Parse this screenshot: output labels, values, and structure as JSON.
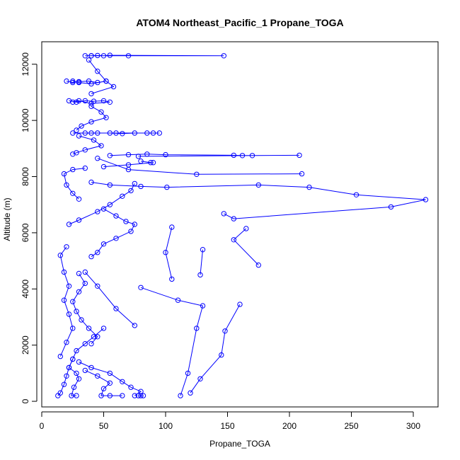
{
  "chart_data": {
    "type": "scatter",
    "title": "ATOM4 Northeast_Pacific_1 Propane_TOGA",
    "xlabel": "Propane_TOGA",
    "ylabel": "Altitude (m)",
    "xlim": [
      0,
      320
    ],
    "ylim": [
      -200,
      12800
    ],
    "x_ticks": [
      0,
      50,
      100,
      150,
      200,
      250,
      300
    ],
    "y_ticks": [
      0,
      2000,
      4000,
      6000,
      8000,
      10000,
      12000
    ],
    "grid": false,
    "legend": "none",
    "series_color": "#0000ff",
    "marker": "open-circle",
    "profiles": [
      [
        [
          35,
          12300
        ],
        [
          40,
          12300
        ],
        [
          45,
          12310
        ],
        [
          50,
          12300
        ],
        [
          55,
          12320
        ],
        [
          147,
          12300
        ],
        [
          70,
          12300
        ],
        [
          40,
          12300
        ]
      ],
      [
        [
          38,
          12150
        ],
        [
          45,
          11750
        ],
        [
          52,
          11400
        ],
        [
          58,
          11200
        ],
        [
          40,
          10950
        ]
      ],
      [
        [
          20,
          11400
        ],
        [
          25,
          11350
        ],
        [
          30,
          11380
        ],
        [
          38,
          11400
        ],
        [
          45,
          11350
        ],
        [
          52,
          11400
        ],
        [
          40,
          11300
        ],
        [
          30,
          11350
        ],
        [
          25,
          11400
        ]
      ],
      [
        [
          22,
          10700
        ],
        [
          28,
          10650
        ],
        [
          35,
          10700
        ],
        [
          42,
          10680
        ],
        [
          50,
          10700
        ],
        [
          55,
          10650
        ],
        [
          40,
          10600
        ],
        [
          30,
          10700
        ],
        [
          25,
          10650
        ]
      ],
      [
        [
          40,
          10500
        ],
        [
          48,
          10300
        ],
        [
          52,
          10100
        ],
        [
          40,
          9950
        ],
        [
          32,
          9800
        ],
        [
          28,
          9650
        ]
      ],
      [
        [
          25,
          9550
        ],
        [
          35,
          9550
        ],
        [
          45,
          9550
        ],
        [
          55,
          9550
        ],
        [
          65,
          9530
        ],
        [
          75,
          9550
        ],
        [
          85,
          9550
        ],
        [
          95,
          9550
        ],
        [
          90,
          9550
        ],
        [
          60,
          9550
        ],
        [
          40,
          9550
        ]
      ],
      [
        [
          30,
          9450
        ],
        [
          42,
          9300
        ],
        [
          48,
          9100
        ],
        [
          35,
          8950
        ],
        [
          28,
          8850
        ],
        [
          25,
          8800
        ]
      ],
      [
        [
          55,
          8750
        ],
        [
          70,
          8780
        ],
        [
          85,
          8800
        ],
        [
          100,
          8780
        ],
        [
          155,
          8760
        ],
        [
          162,
          8750
        ],
        [
          170,
          8750
        ],
        [
          208,
          8760
        ],
        [
          78,
          8720
        ]
      ],
      [
        [
          80,
          8550
        ],
        [
          88,
          8500
        ],
        [
          90,
          8500
        ],
        [
          70,
          8420
        ],
        [
          50,
          8350
        ]
      ],
      [
        [
          35,
          8300
        ],
        [
          25,
          8250
        ],
        [
          18,
          8100
        ],
        [
          20,
          7700
        ],
        [
          25,
          7400
        ],
        [
          30,
          7200
        ]
      ],
      [
        [
          45,
          8650
        ],
        [
          70,
          8250
        ],
        [
          125,
          8080
        ],
        [
          210,
          8100
        ]
      ],
      [
        [
          40,
          7800
        ],
        [
          55,
          7700
        ],
        [
          80,
          7650
        ],
        [
          101,
          7620
        ],
        [
          175,
          7700
        ],
        [
          216,
          7620
        ],
        [
          254,
          7350
        ],
        [
          310,
          7180
        ],
        [
          282,
          6920
        ],
        [
          155,
          6500
        ],
        [
          147,
          6680
        ]
      ],
      [
        [
          75,
          7750
        ],
        [
          72,
          7500
        ],
        [
          65,
          7300
        ],
        [
          55,
          7000
        ],
        [
          45,
          6750
        ],
        [
          30,
          6450
        ],
        [
          22,
          6300
        ]
      ],
      [
        [
          50,
          6850
        ],
        [
          60,
          6600
        ],
        [
          68,
          6400
        ],
        [
          75,
          6300
        ],
        [
          72,
          6050
        ],
        [
          60,
          5800
        ],
        [
          50,
          5600
        ],
        [
          45,
          5300
        ],
        [
          40,
          5150
        ]
      ],
      [
        [
          165,
          6150
        ],
        [
          155,
          5750
        ],
        [
          175,
          4850
        ]
      ],
      [
        [
          105,
          6200
        ],
        [
          100,
          5300
        ],
        [
          105,
          4350
        ]
      ],
      [
        [
          130,
          5400
        ],
        [
          128,
          4500
        ]
      ],
      [
        [
          20,
          5500
        ],
        [
          15,
          5200
        ],
        [
          18,
          4600
        ],
        [
          22,
          4100
        ],
        [
          18,
          3600
        ],
        [
          22,
          3100
        ],
        [
          25,
          2600
        ],
        [
          20,
          2100
        ],
        [
          15,
          1600
        ]
      ],
      [
        [
          30,
          4550
        ],
        [
          35,
          4200
        ],
        [
          30,
          3900
        ],
        [
          25,
          3550
        ],
        [
          28,
          3200
        ],
        [
          32,
          2900
        ],
        [
          38,
          2600
        ],
        [
          45,
          2300
        ],
        [
          40,
          2050
        ]
      ],
      [
        [
          80,
          4050
        ],
        [
          110,
          3600
        ],
        [
          130,
          3400
        ],
        [
          125,
          2600
        ],
        [
          118,
          1000
        ],
        [
          112,
          200
        ]
      ],
      [
        [
          160,
          3450
        ],
        [
          148,
          2500
        ],
        [
          145,
          1650
        ],
        [
          128,
          800
        ],
        [
          120,
          300
        ]
      ],
      [
        [
          75,
          2700
        ],
        [
          60,
          3300
        ],
        [
          45,
          4100
        ],
        [
          35,
          4600
        ]
      ],
      [
        [
          50,
          2600
        ],
        [
          42,
          2300
        ],
        [
          35,
          2050
        ],
        [
          28,
          1800
        ],
        [
          25,
          1500
        ],
        [
          22,
          1200
        ],
        [
          20,
          900
        ],
        [
          18,
          600
        ],
        [
          15,
          300
        ],
        [
          13,
          200
        ]
      ],
      [
        [
          30,
          1400
        ],
        [
          40,
          1200
        ],
        [
          55,
          1000
        ],
        [
          65,
          700
        ],
        [
          72,
          500
        ],
        [
          80,
          350
        ],
        [
          75,
          200
        ]
      ],
      [
        [
          35,
          1100
        ],
        [
          45,
          900
        ],
        [
          55,
          650
        ],
        [
          50,
          450
        ],
        [
          48,
          200
        ],
        [
          55,
          200
        ],
        [
          65,
          200
        ]
      ],
      [
        [
          25,
          1500
        ],
        [
          22,
          1200
        ],
        [
          28,
          1000
        ],
        [
          30,
          800
        ],
        [
          26,
          500
        ],
        [
          24,
          200
        ],
        [
          28,
          200
        ]
      ],
      [
        [
          78,
          200
        ],
        [
          80,
          200
        ],
        [
          82,
          200
        ]
      ]
    ]
  }
}
